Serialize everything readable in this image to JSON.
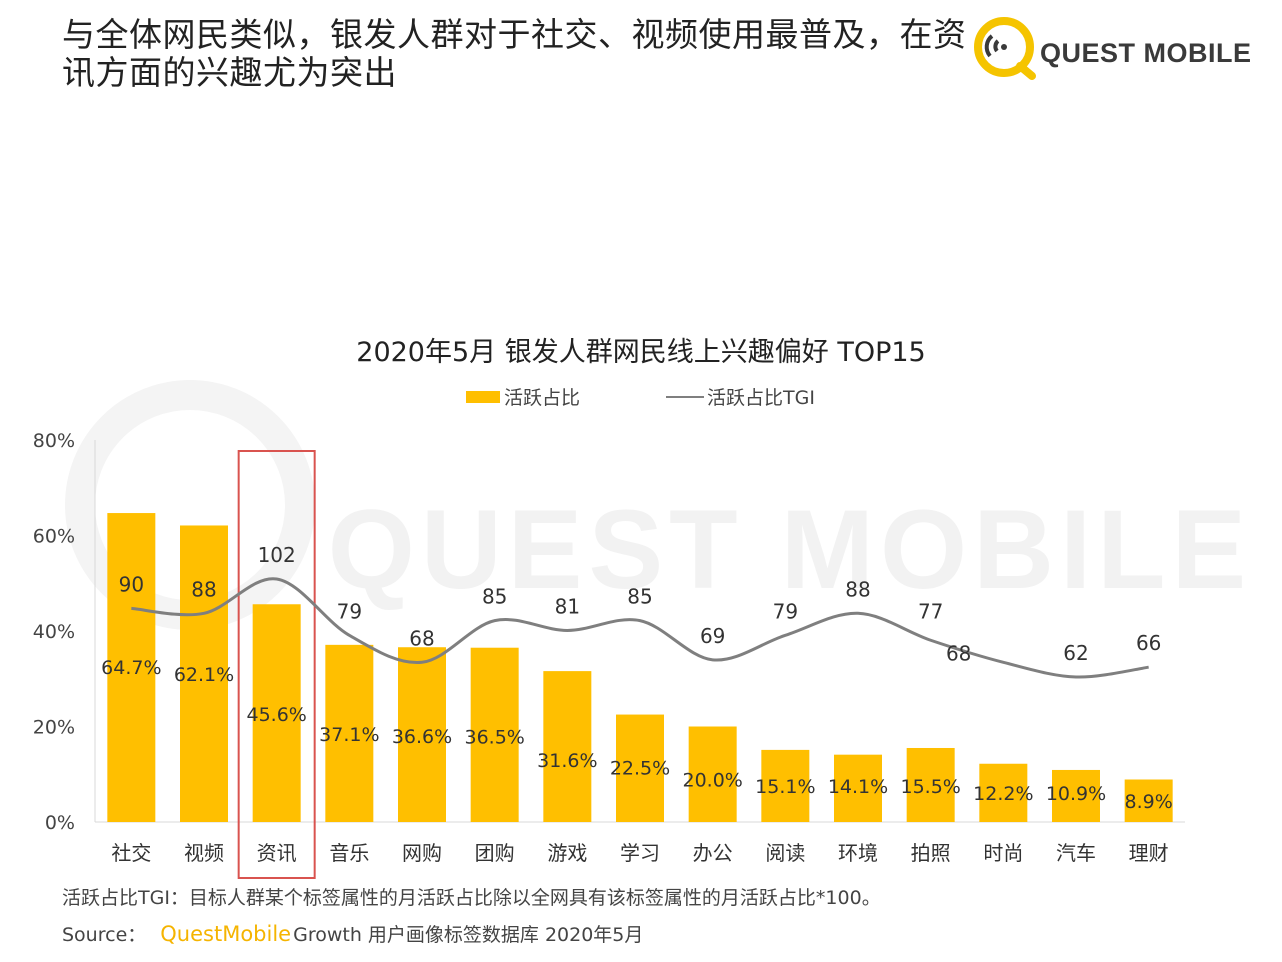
{
  "header": {
    "headline": "与全体网民类似，银发人群对于社交、视频使用最普及，在资讯方面的兴趣尤为突出",
    "brand": "QUEST MOBILE"
  },
  "watermark": "QUEST MOBILE",
  "footer": {
    "note": "活跃占比TGI：目标人群某个标签属性的月活跃占比除以全网具有该标签属性的月活跃占比*100。",
    "source_label": "Source：",
    "source_brand": "QuestMobile",
    "source_text": "Growth 用户画像标签数据库 2020年5月"
  },
  "colors": {
    "bar": "#ffbf00",
    "line": "#7f7f7f",
    "highlight_box": "#d9534f",
    "brand_yellow": "#f5c400"
  },
  "chart_data": {
    "type": "bar",
    "title": "2020年5月 银发人群网民线上兴趣偏好 TOP15",
    "categories": [
      "社交",
      "视频",
      "资讯",
      "音乐",
      "网购",
      "团购",
      "游戏",
      "学习",
      "办公",
      "阅读",
      "环境",
      "拍照",
      "时尚",
      "汽车",
      "理财"
    ],
    "series": [
      {
        "name": "活跃占比",
        "type": "bar",
        "axis": "left",
        "values": [
          64.7,
          62.1,
          45.6,
          37.1,
          36.6,
          36.5,
          31.6,
          22.5,
          20.0,
          15.1,
          14.1,
          15.5,
          12.2,
          10.9,
          8.9
        ],
        "labels": [
          "64.7%",
          "62.1%",
          "45.6%",
          "37.1%",
          "36.6%",
          "36.5%",
          "31.6%",
          "22.5%",
          "20.0%",
          "15.1%",
          "14.1%",
          "15.5%",
          "12.2%",
          "10.9%",
          "8.9%"
        ]
      },
      {
        "name": "活跃占比TGI",
        "type": "line",
        "axis": "secondary",
        "values": [
          90,
          88,
          102,
          79,
          68,
          85,
          81,
          85,
          69,
          79,
          88,
          77,
          68,
          62,
          66
        ],
        "labels": [
          "90",
          "88",
          "102",
          "79",
          "68",
          "85",
          "81",
          "85",
          "69",
          "79",
          "88",
          "77",
          "68",
          "62",
          "66"
        ]
      }
    ],
    "y_ticks": [
      "0%",
      "20%",
      "40%",
      "60%",
      "80%"
    ],
    "ylim": [
      0,
      80
    ],
    "legend_position": "top-center",
    "highlight_category": "资讯",
    "grid": false
  }
}
